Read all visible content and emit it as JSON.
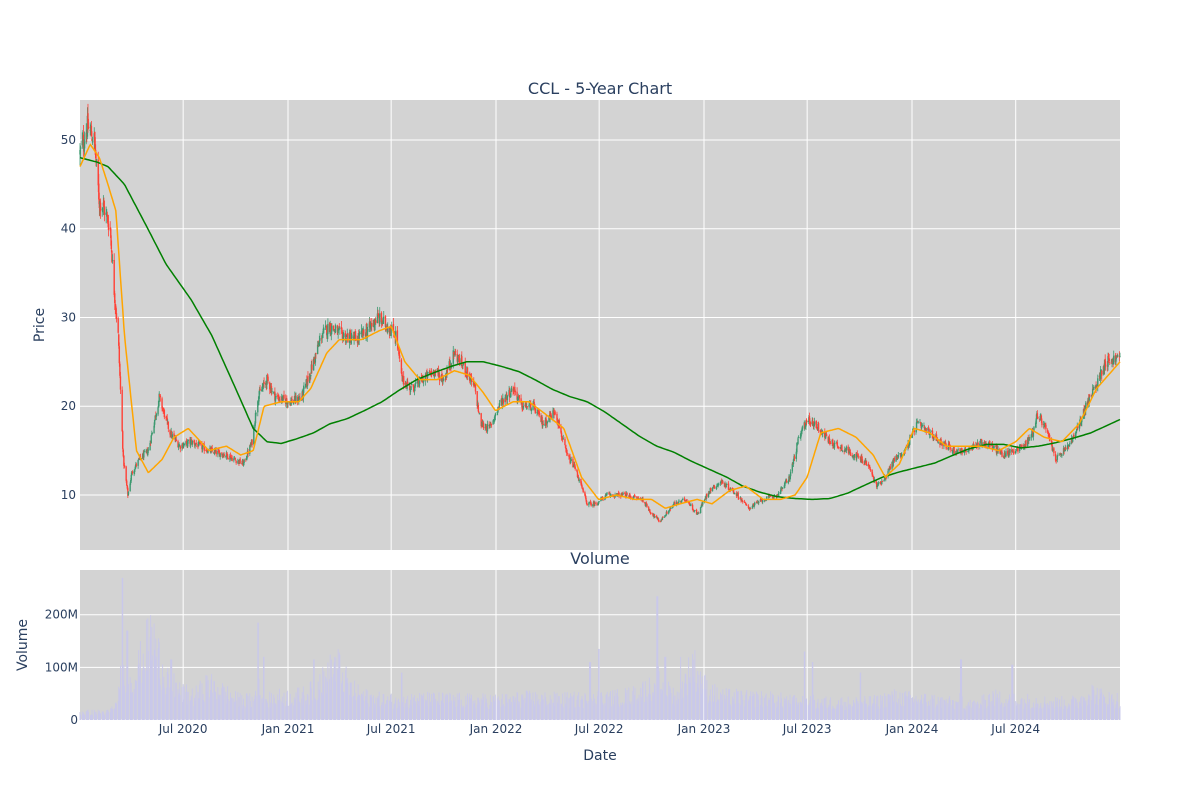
{
  "colors": {
    "panel_bg": "#d3d3d3",
    "grid": "#ffffff",
    "increasing": "#3d9970",
    "decreasing": "#ff4136",
    "ma_short": "#ffa500",
    "ma_long": "#008000",
    "volume_bar": "#c9c8ea",
    "text": "#2a3f5f"
  },
  "chart_data": [
    {
      "type": "candlestick",
      "title": "CCL - 5-Year Chart",
      "ylabel": "Price",
      "ylim": [
        3.8,
        54.5
      ],
      "xlim": [
        "2020-01-02",
        "2024-12-31"
      ],
      "yticks": [
        10,
        20,
        30,
        40,
        50
      ],
      "grid": true,
      "price_anchors": {
        "dates": [
          "2020-01-02",
          "2020-01-15",
          "2020-01-27",
          "2020-02-05",
          "2020-02-12",
          "2020-02-24",
          "2020-03-02",
          "2020-03-09",
          "2020-03-18",
          "2020-03-26",
          "2020-04-02",
          "2020-04-15",
          "2020-05-01",
          "2020-05-20",
          "2020-06-08",
          "2020-06-25",
          "2020-07-15",
          "2020-08-15",
          "2020-09-15",
          "2020-10-15",
          "2020-10-30",
          "2020-11-09",
          "2020-11-25",
          "2020-12-10",
          "2021-01-05",
          "2021-01-25",
          "2021-02-10",
          "2021-03-01",
          "2021-03-15",
          "2021-04-05",
          "2021-05-01",
          "2021-05-20",
          "2021-06-07",
          "2021-06-25",
          "2021-07-10",
          "2021-07-20",
          "2021-08-05",
          "2021-08-25",
          "2021-09-15",
          "2021-10-01",
          "2021-10-20",
          "2021-11-10",
          "2021-11-25",
          "2021-12-05",
          "2021-12-20",
          "2022-01-10",
          "2022-02-01",
          "2022-02-15",
          "2022-03-07",
          "2022-03-25",
          "2022-04-15",
          "2022-05-05",
          "2022-05-20",
          "2022-06-10",
          "2022-06-25",
          "2022-07-15",
          "2022-08-15",
          "2022-09-15",
          "2022-09-30",
          "2022-10-15",
          "2022-11-10",
          "2022-12-01",
          "2022-12-20",
          "2023-01-10",
          "2023-01-31",
          "2023-03-01",
          "2023-03-20",
          "2023-04-15",
          "2023-05-10",
          "2023-05-31",
          "2023-06-15",
          "2023-06-30",
          "2023-07-15",
          "2023-08-10",
          "2023-09-10",
          "2023-10-15",
          "2023-10-31",
          "2023-11-15",
          "2023-12-01",
          "2023-12-20",
          "2024-01-10",
          "2024-02-01",
          "2024-02-20",
          "2024-03-15",
          "2024-04-10",
          "2024-04-30",
          "2024-05-20",
          "2024-06-10",
          "2024-06-26",
          "2024-07-15",
          "2024-07-31",
          "2024-08-07",
          "2024-08-20",
          "2024-09-10",
          "2024-10-01",
          "2024-10-15",
          "2024-11-01",
          "2024-11-20",
          "2024-12-05",
          "2024-12-31"
        ],
        "prices": [
          48.5,
          51.5,
          50,
          43,
          42.5,
          40,
          33,
          28,
          14,
          10,
          12.5,
          14,
          15,
          21,
          17,
          15.5,
          16,
          15,
          14.5,
          13.5,
          16,
          21,
          23,
          21,
          20.5,
          21,
          24,
          28,
          29,
          28,
          27.5,
          28.5,
          30,
          29,
          28,
          23,
          22,
          23,
          24,
          23,
          26,
          24,
          22,
          18,
          17.5,
          20.5,
          22,
          20,
          20,
          18,
          19.5,
          14.5,
          13,
          9,
          9,
          10,
          10,
          9.5,
          8,
          7,
          9,
          9.5,
          7.8,
          10.5,
          11.5,
          10,
          8.5,
          9.5,
          10,
          12,
          16,
          18.5,
          18,
          16,
          15,
          13.5,
          11,
          12,
          14,
          15,
          18,
          17,
          16,
          15,
          15,
          16,
          15.5,
          14.5,
          15,
          15.5,
          17,
          19,
          18,
          14,
          15.5,
          17,
          20,
          22.5,
          25,
          25.5
        ]
      },
      "ma_short_anchors": {
        "dates": [
          "2020-01-02",
          "2020-01-20",
          "2020-02-05",
          "2020-02-20",
          "2020-03-05",
          "2020-03-20",
          "2020-04-10",
          "2020-05-01",
          "2020-05-25",
          "2020-06-15",
          "2020-07-10",
          "2020-08-15",
          "2020-09-15",
          "2020-10-10",
          "2020-11-01",
          "2020-11-20",
          "2020-12-20",
          "2021-01-20",
          "2021-02-10",
          "2021-03-10",
          "2021-04-01",
          "2021-05-10",
          "2021-06-10",
          "2021-07-01",
          "2021-07-25",
          "2021-08-20",
          "2021-09-20",
          "2021-10-20",
          "2021-11-15",
          "2021-12-10",
          "2021-12-31",
          "2022-01-31",
          "2022-02-28",
          "2022-03-31",
          "2022-04-30",
          "2022-05-31",
          "2022-06-30",
          "2022-08-01",
          "2022-09-01",
          "2022-10-01",
          "2022-10-25",
          "2022-11-20",
          "2022-12-20",
          "2023-01-15",
          "2023-02-15",
          "2023-03-15",
          "2023-04-15",
          "2023-05-15",
          "2023-06-10",
          "2023-07-01",
          "2023-07-25",
          "2023-08-25",
          "2023-09-25",
          "2023-10-25",
          "2023-11-15",
          "2023-12-10",
          "2024-01-05",
          "2024-02-01",
          "2024-03-01",
          "2024-04-01",
          "2024-05-01",
          "2024-06-01",
          "2024-07-01",
          "2024-07-25",
          "2024-08-20",
          "2024-09-20",
          "2024-10-20",
          "2024-11-20",
          "2024-12-31"
        ],
        "values": [
          47,
          49.5,
          48,
          45,
          42,
          28,
          15,
          12.5,
          14,
          16.5,
          17.5,
          15,
          15.5,
          14.5,
          15,
          20,
          20.5,
          20.5,
          22,
          26,
          27.5,
          27.5,
          28.5,
          29,
          25,
          23,
          23,
          24,
          23.5,
          21.5,
          19.5,
          20.5,
          20.5,
          19,
          17.5,
          12,
          9.5,
          10,
          9.5,
          9.5,
          8.5,
          9,
          9.5,
          9,
          10.5,
          11,
          9.5,
          9.5,
          10,
          12,
          17,
          17.5,
          16.5,
          14.5,
          12,
          13.5,
          17.5,
          17,
          15.5,
          15.5,
          15.5,
          15,
          16,
          17.5,
          16.5,
          16,
          18,
          22,
          25
        ]
      },
      "ma_long_anchors": {
        "dates": [
          "2020-01-02",
          "2020-02-01",
          "2020-02-20",
          "2020-03-20",
          "2020-04-30",
          "2020-06-01",
          "2020-07-15",
          "2020-08-20",
          "2020-10-01",
          "2020-11-01",
          "2020-11-25",
          "2020-12-20",
          "2021-01-15",
          "2021-02-15",
          "2021-03-15",
          "2021-04-15",
          "2021-05-15",
          "2021-06-15",
          "2021-07-15",
          "2021-08-15",
          "2021-09-15",
          "2021-10-15",
          "2021-11-10",
          "2021-12-10",
          "2022-01-10",
          "2022-02-10",
          "2022-03-10",
          "2022-04-10",
          "2022-05-10",
          "2022-06-10",
          "2022-07-10",
          "2022-08-10",
          "2022-09-10",
          "2022-10-10",
          "2022-11-10",
          "2022-12-10",
          "2023-01-10",
          "2023-02-10",
          "2023-03-10",
          "2023-04-10",
          "2023-05-10",
          "2023-06-10",
          "2023-07-10",
          "2023-08-10",
          "2023-09-10",
          "2023-10-10",
          "2023-11-10",
          "2023-12-10",
          "2024-01-10",
          "2024-02-10",
          "2024-03-10",
          "2024-04-10",
          "2024-05-10",
          "2024-06-10",
          "2024-07-10",
          "2024-08-10",
          "2024-09-10",
          "2024-10-10",
          "2024-11-10",
          "2024-12-31"
        ],
        "values": [
          48,
          47.5,
          47,
          45,
          40,
          36,
          32,
          28,
          22,
          17.5,
          16,
          15.8,
          16.3,
          17,
          18,
          18.6,
          19.5,
          20.5,
          21.8,
          23,
          23.8,
          24.5,
          25,
          25,
          24.5,
          23.9,
          23,
          21.9,
          21.1,
          20.5,
          19.4,
          18,
          16.6,
          15.5,
          14.8,
          13.8,
          12.9,
          12,
          11,
          10.3,
          9.8,
          9.6,
          9.5,
          9.6,
          10.2,
          11.1,
          12,
          12.6,
          13.1,
          13.6,
          14.4,
          15.2,
          15.7,
          15.7,
          15.3,
          15.5,
          15.9,
          16.4,
          17,
          18.5
        ]
      }
    },
    {
      "type": "bar",
      "title": "Volume",
      "ylabel": "Volume",
      "xlabel": "Date",
      "ylim": [
        0,
        285000000
      ],
      "yticks": [
        0,
        100000000,
        200000000
      ],
      "ytick_labels": [
        "0",
        "100M",
        "200M"
      ],
      "xticks": [
        "2020-07-01",
        "2021-01-01",
        "2021-07-01",
        "2022-01-01",
        "2022-07-01",
        "2023-01-01",
        "2023-07-01",
        "2024-01-01",
        "2024-07-01"
      ],
      "xtick_labels": [
        "Jul 2020",
        "Jan 2021",
        "Jul 2021",
        "Jan 2022",
        "Jul 2022",
        "Jan 2023",
        "Jul 2023",
        "Jan 2024",
        "Jul 2024"
      ],
      "base_volume_millions": [
        15,
        15,
        15,
        40,
        95,
        165,
        85,
        55,
        45,
        70,
        55,
        40,
        38,
        38,
        45,
        45,
        50,
        75,
        110,
        60,
        45,
        40,
        38,
        38,
        40,
        40,
        40,
        38,
        38,
        38,
        38,
        42,
        42,
        40,
        40,
        40,
        40,
        42,
        45,
        50,
        65,
        60,
        45,
        110,
        60,
        45,
        45,
        42,
        42,
        40,
        36,
        34,
        34,
        34,
        34,
        34,
        36,
        45,
        42,
        40,
        38,
        34,
        30,
        30,
        45,
        40,
        38,
        38,
        34,
        34,
        36,
        55,
        42,
        40
      ],
      "peaks_millions": [
        {
          "date": "2020-03-16",
          "value": 270
        },
        {
          "date": "2020-03-25",
          "value": 170
        },
        {
          "date": "2020-06-10",
          "value": 115
        },
        {
          "date": "2020-11-09",
          "value": 185
        },
        {
          "date": "2020-11-20",
          "value": 120
        },
        {
          "date": "2021-02-15",
          "value": 115
        },
        {
          "date": "2021-07-19",
          "value": 90
        },
        {
          "date": "2022-06-15",
          "value": 110
        },
        {
          "date": "2022-07-01",
          "value": 135
        },
        {
          "date": "2022-10-11",
          "value": 235
        },
        {
          "date": "2022-10-25",
          "value": 120
        },
        {
          "date": "2022-11-20",
          "value": 120
        },
        {
          "date": "2023-06-26",
          "value": 130
        },
        {
          "date": "2023-07-10",
          "value": 110
        },
        {
          "date": "2023-10-02",
          "value": 90
        },
        {
          "date": "2024-03-27",
          "value": 115
        },
        {
          "date": "2024-06-25",
          "value": 105
        }
      ]
    }
  ],
  "labels": {
    "price_title": "CCL - 5-Year Chart",
    "price_ylabel": "Price",
    "volume_title": "Volume",
    "volume_ylabel": "Volume",
    "xlabel": "Date"
  }
}
